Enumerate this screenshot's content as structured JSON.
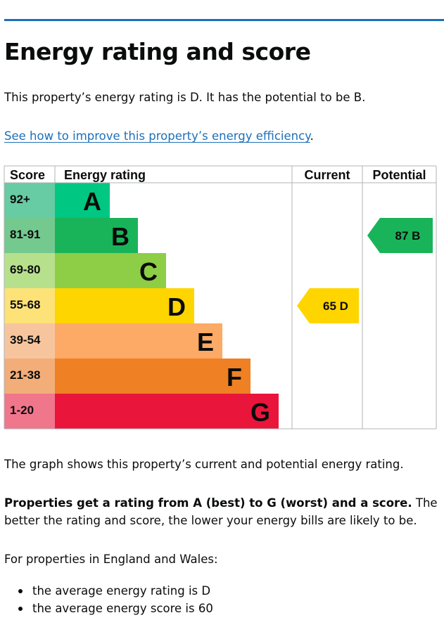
{
  "heading": "Energy rating and score",
  "intro": "This property’s energy rating is D. It has the potential to be B.",
  "improve_link": "See how to improve this property’s energy efficiency",
  "improve_suffix": ".",
  "chart_data": {
    "type": "bar",
    "headers": {
      "score": "Score",
      "rating": "Energy rating",
      "current": "Current",
      "potential": "Potential"
    },
    "bands": [
      {
        "letter": "A",
        "range": "92+",
        "color": "#00c781",
        "score_bg": "#67cba4"
      },
      {
        "letter": "B",
        "range": "81-91",
        "color": "#19b459",
        "score_bg": "#74c98e"
      },
      {
        "letter": "C",
        "range": "69-80",
        "color": "#8dce46",
        "score_bg": "#b7e08c"
      },
      {
        "letter": "D",
        "range": "55-68",
        "color": "#ffd500",
        "score_bg": "#fde278"
      },
      {
        "letter": "E",
        "range": "39-54",
        "color": "#fcaa65",
        "score_bg": "#f7c59d"
      },
      {
        "letter": "F",
        "range": "21-38",
        "color": "#ef8023",
        "score_bg": "#f2ad79"
      },
      {
        "letter": "G",
        "range": "1-20",
        "color": "#e9153b",
        "score_bg": "#f0768c"
      }
    ],
    "current": {
      "score": 65,
      "band": "D",
      "label": "65  D"
    },
    "potential": {
      "score": 87,
      "band": "B",
      "label": "87  B"
    }
  },
  "graph_text": "The graph shows this property’s current and potential energy rating.",
  "bold_text": "Properties get a rating from A (best) to G (worst) and a score.",
  "rest_text": " The better the rating and score, the lower your energy bills are likely to be.",
  "region_text": "For properties in England and Wales:",
  "bullets": [
    "the average energy rating is D",
    "the average energy score is 60"
  ]
}
